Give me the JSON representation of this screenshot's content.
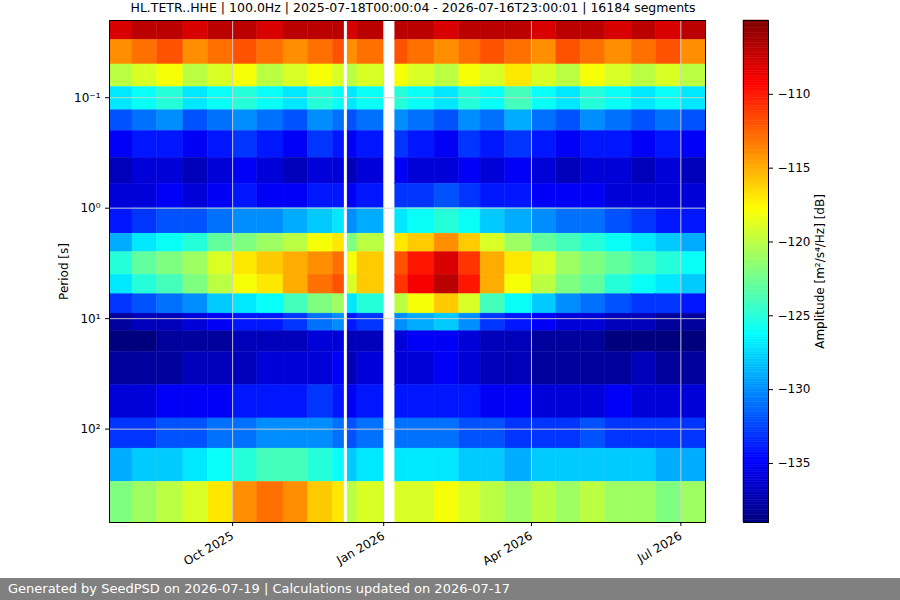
{
  "chart_data": {
    "type": "heatmap",
    "title": "HL.TETR..HHE | 100.0Hz | 2025-07-18T00:00:04 - 2026-07-16T23:00:01 | 16184 segments",
    "caption": "Generated by SeedPSD on 2026-07-19 | Calculations updated on 2026-07-17",
    "ylabel": "Period [s]",
    "log": "y",
    "grid": true,
    "xlim": [
      "2025-07-18",
      "2026-07-16"
    ],
    "xticks": [
      {
        "value": "2025-10-01",
        "label": "Oct 2025"
      },
      {
        "value": "2026-01-01",
        "label": "Jan 2026"
      },
      {
        "value": "2026-04-01",
        "label": "Apr 2026"
      },
      {
        "value": "2026-07-01",
        "label": "Jul 2026"
      }
    ],
    "ylim": [
      0.02,
      700
    ],
    "yticks": [
      {
        "value": 0.1,
        "label": "10⁻¹"
      },
      {
        "value": 1,
        "label": "10⁰"
      },
      {
        "value": 10,
        "label": "10¹"
      },
      {
        "value": 100,
        "label": "10²"
      }
    ],
    "x_bins": [
      "2025-07-18",
      "2025-08-01",
      "2025-08-16",
      "2025-09-01",
      "2025-09-16",
      "2025-10-01",
      "2025-10-16",
      "2025-11-01",
      "2025-11-16",
      "2025-12-01",
      "2025-12-08",
      "2025-12-10",
      "2025-12-16",
      "2026-01-01",
      "2026-01-08",
      "2026-01-16",
      "2026-02-01",
      "2026-02-16",
      "2026-03-01",
      "2026-03-16",
      "2026-04-01",
      "2026-04-16",
      "2026-05-01",
      "2026-05-16",
      "2026-06-01",
      "2026-06-16",
      "2026-07-01",
      "2026-07-16"
    ],
    "y_bins": [
      0.02,
      0.03,
      0.05,
      0.08,
      0.13,
      0.2,
      0.35,
      0.6,
      1,
      1.7,
      2.5,
      4,
      6,
      9,
      13,
      20,
      40,
      80,
      150,
      300,
      700
    ],
    "values": [
      [
        -108,
        -107,
        -107,
        -108,
        -107,
        -107,
        -108,
        -107,
        -107,
        -107,
        null,
        -108,
        -107,
        null,
        -107,
        -107,
        -108,
        -107,
        -107,
        -107,
        -108,
        -107,
        -107,
        -108,
        -107,
        -108,
        -107
      ],
      [
        -114,
        -113,
        -112,
        -114,
        -113,
        -112,
        -113,
        -114,
        -113,
        -112,
        null,
        -114,
        -113,
        null,
        -112,
        -113,
        -114,
        -113,
        -112,
        -113,
        -114,
        -112,
        -113,
        -114,
        -113,
        -112,
        -114
      ],
      [
        -120,
        -119,
        -118,
        -120,
        -119,
        -118,
        -120,
        -119,
        -118,
        -119,
        null,
        -120,
        -119,
        null,
        -118,
        -119,
        -120,
        -118,
        -119,
        -117,
        -119,
        -120,
        -118,
        -119,
        -120,
        -119,
        -120
      ],
      [
        -127,
        -126,
        -125,
        -127,
        -126,
        -125,
        -126,
        -127,
        -125,
        -126,
        null,
        -127,
        -126,
        null,
        -125,
        -126,
        -127,
        -125,
        -126,
        -124,
        -126,
        -127,
        -125,
        -126,
        -127,
        -126,
        -127
      ],
      [
        -132,
        -131,
        -130,
        -132,
        -131,
        -130,
        -131,
        -132,
        -130,
        -131,
        null,
        -132,
        -131,
        null,
        -130,
        -131,
        -132,
        -130,
        -131,
        -129,
        -131,
        -132,
        -130,
        -131,
        -132,
        -131,
        -132
      ],
      [
        -135,
        -134,
        -134,
        -135,
        -134,
        -133,
        -134,
        -135,
        -133,
        -134,
        null,
        -135,
        -134,
        null,
        -133,
        -134,
        -135,
        -133,
        -134,
        -133,
        -134,
        -135,
        -134,
        -134,
        -135,
        -134,
        -135
      ],
      [
        -137,
        -136,
        -136,
        -137,
        -136,
        -135,
        -136,
        -137,
        -136,
        -136,
        null,
        -137,
        -136,
        null,
        -135,
        -136,
        -136,
        -135,
        -136,
        -135,
        -136,
        -137,
        -136,
        -136,
        -137,
        -136,
        -137
      ],
      [
        -136,
        -136,
        -135,
        -136,
        -135,
        -134,
        -135,
        -135,
        -134,
        -134,
        null,
        -135,
        -134,
        null,
        -133,
        -133,
        -132,
        -133,
        -134,
        -134,
        -135,
        -135,
        -135,
        -136,
        -136,
        -136,
        -136
      ],
      [
        -134,
        -133,
        -132,
        -132,
        -131,
        -130,
        -130,
        -129,
        -128,
        -127,
        null,
        -130,
        -129,
        null,
        -127,
        -126,
        -125,
        -126,
        -128,
        -129,
        -130,
        -131,
        -131,
        -132,
        -133,
        -134,
        -134
      ],
      [
        -129,
        -127,
        -126,
        -125,
        -123,
        -122,
        -121,
        -120,
        -118,
        -117,
        null,
        -122,
        -120,
        null,
        -117,
        -116,
        -114,
        -116,
        -119,
        -121,
        -123,
        -124,
        -125,
        -126,
        -127,
        -128,
        -129
      ],
      [
        -125,
        -123,
        -122,
        -121,
        -119,
        -117,
        -116,
        -115,
        -114,
        -113,
        null,
        -118,
        -116,
        null,
        -112,
        -110,
        -108,
        -111,
        -115,
        -117,
        -119,
        -121,
        -122,
        -123,
        -124,
        -125,
        -126
      ],
      [
        -127,
        -125,
        -124,
        -122,
        -120,
        -118,
        -117,
        -115,
        -113,
        -112,
        null,
        -119,
        -116,
        null,
        -111,
        -109,
        -107,
        -110,
        -115,
        -118,
        -120,
        -122,
        -123,
        -125,
        -126,
        -127,
        -128
      ],
      [
        -133,
        -132,
        -131,
        -130,
        -128,
        -127,
        -126,
        -124,
        -122,
        -121,
        null,
        -127,
        -125,
        null,
        -120,
        -118,
        -116,
        -119,
        -124,
        -126,
        -128,
        -130,
        -131,
        -132,
        -133,
        -133,
        -134
      ],
      [
        -138,
        -137,
        -137,
        -136,
        -135,
        -134,
        -134,
        -133,
        -131,
        -130,
        null,
        -134,
        -133,
        null,
        -130,
        -129,
        -128,
        -130,
        -133,
        -134,
        -135,
        -136,
        -136,
        -137,
        -137,
        -138,
        -138
      ],
      [
        -139,
        -139,
        -138,
        -138,
        -138,
        -137,
        -137,
        -137,
        -136,
        -136,
        null,
        -137,
        -137,
        null,
        -136,
        -135,
        -135,
        -136,
        -137,
        -137,
        -138,
        -138,
        -138,
        -139,
        -139,
        -139,
        -139
      ],
      [
        -138,
        -138,
        -138,
        -137,
        -137,
        -137,
        -136,
        -136,
        -136,
        -135,
        null,
        -137,
        -136,
        null,
        -136,
        -136,
        -135,
        -136,
        -137,
        -137,
        -138,
        -138,
        -138,
        -138,
        -137,
        -138,
        -138
      ],
      [
        -136,
        -136,
        -135,
        -135,
        -135,
        -134,
        -134,
        -134,
        -133,
        -134,
        null,
        -135,
        -134,
        null,
        -134,
        -134,
        -134,
        -134,
        -135,
        -135,
        -136,
        -136,
        -136,
        -135,
        -136,
        -136,
        -136
      ],
      [
        -133,
        -133,
        -132,
        -132,
        -131,
        -131,
        -130,
        -130,
        -130,
        -131,
        null,
        -132,
        -131,
        null,
        -131,
        -131,
        -131,
        -132,
        -132,
        -133,
        -133,
        -133,
        -132,
        -133,
        -133,
        -133,
        -133
      ],
      [
        -129,
        -128,
        -128,
        -127,
        -126,
        -125,
        -124,
        -124,
        -125,
        -126,
        null,
        -128,
        -127,
        null,
        -127,
        -127,
        -127,
        -128,
        -128,
        -129,
        -128,
        -128,
        -128,
        -128,
        -128,
        -129,
        -129
      ],
      [
        -122,
        -121,
        -120,
        -119,
        -117,
        -114,
        -113,
        -114,
        -116,
        -117,
        null,
        -120,
        -119,
        null,
        -119,
        -119,
        -118,
        -119,
        -120,
        -121,
        -120,
        -121,
        -120,
        -121,
        -121,
        -122,
        -121
      ]
    ],
    "colorbar": {
      "label": "Amplitude [m²/s⁴/Hz] [dB]",
      "range": [
        -139,
        -105
      ],
      "ticks": [
        -135,
        -130,
        -125,
        -120,
        -115,
        -110
      ]
    }
  }
}
